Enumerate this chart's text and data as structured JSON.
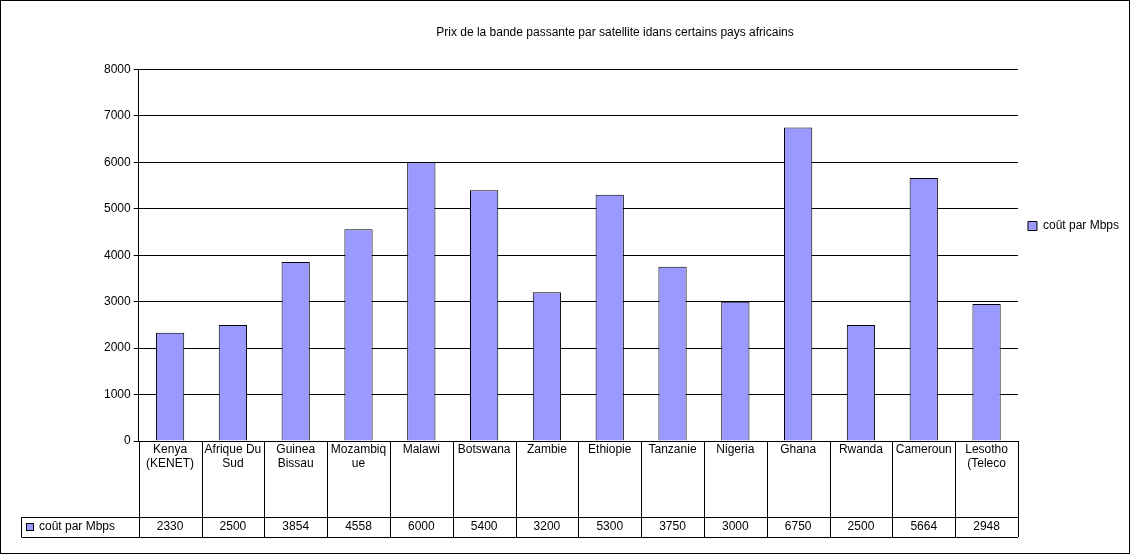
{
  "chart_data": {
    "type": "bar",
    "title": "Prix de la bande passante par satellite idans certains pays africains",
    "categories": [
      "Kenya (KENET)",
      "Afrique Du Sud",
      "Guinea Bissau",
      "Mozambique",
      "Malawi",
      "Botswana",
      "Zambie",
      "Ethiopie",
      "Tanzanie",
      "Nigeria",
      "Ghana",
      "Rwanda",
      "Cameroun",
      "Lesotho (Teleco"
    ],
    "series": [
      {
        "name": "coût par Mbps",
        "color": "#9999ff",
        "values": [
          2330,
          2500,
          3854,
          4558,
          6000,
          5400,
          3200,
          5300,
          3750,
          3000,
          6750,
          2500,
          5664,
          2948
        ]
      }
    ],
    "ylim": [
      0,
      8000
    ],
    "yticks": [
      0,
      1000,
      2000,
      3000,
      4000,
      5000,
      6000,
      7000,
      8000
    ],
    "grid": "y",
    "legend": "right",
    "data_labels": true
  }
}
